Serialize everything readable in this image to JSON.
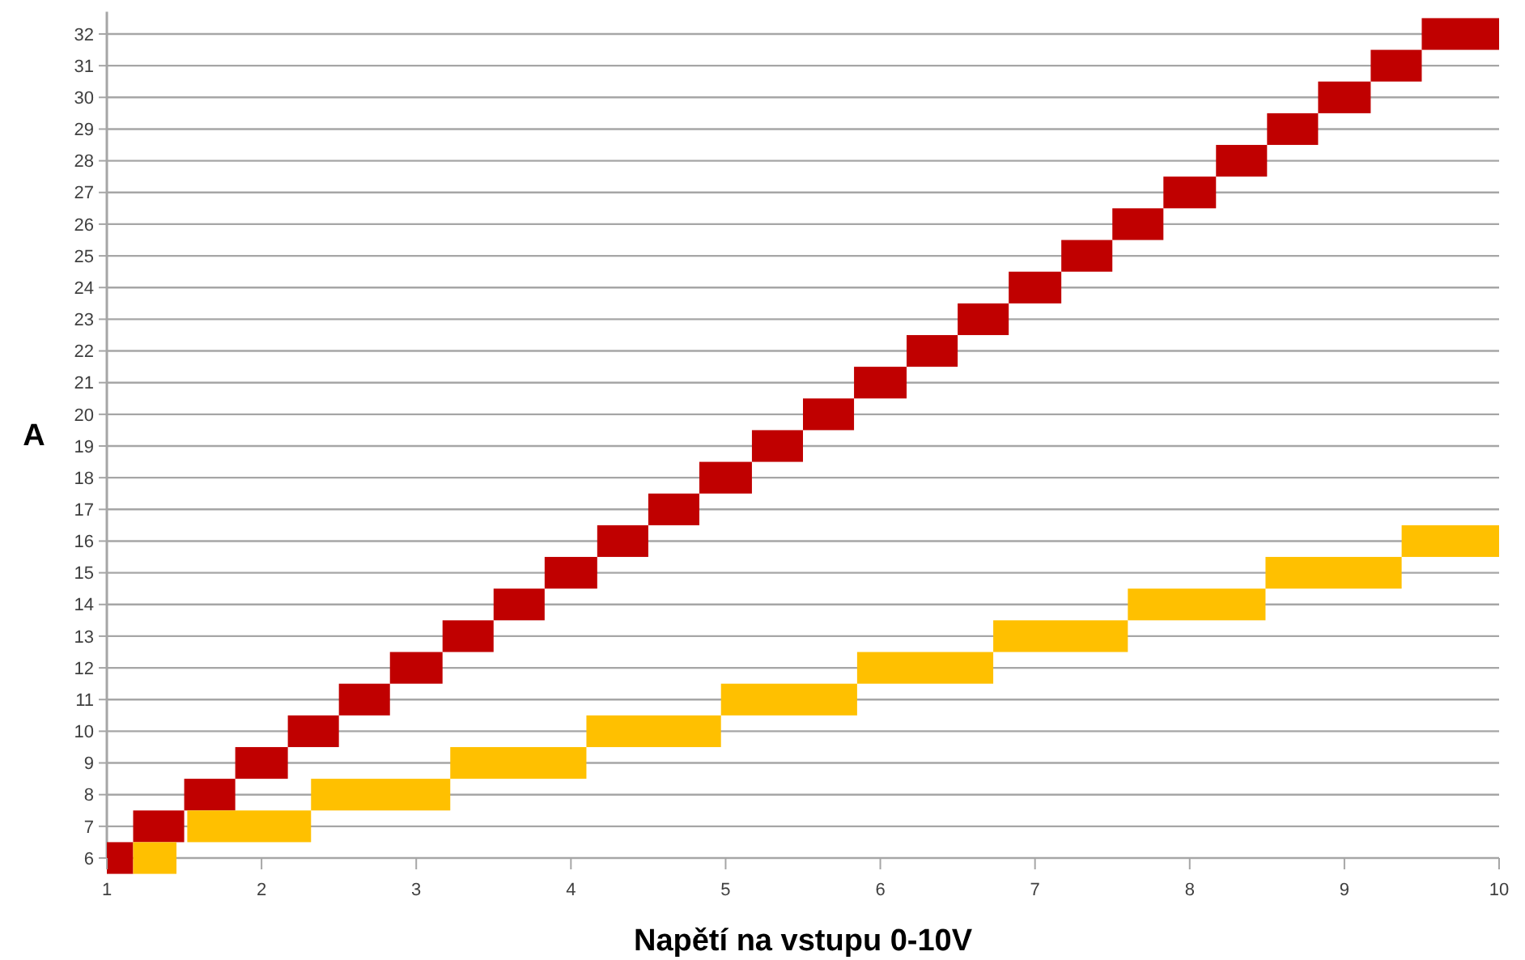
{
  "chart_data": {
    "type": "bar",
    "orientation": "horizontal",
    "xlabel": "Napětí na vstupu 0-10V",
    "ylabel": "A",
    "categories": [
      "32",
      "31",
      "30",
      "29",
      "28",
      "27",
      "26",
      "25",
      "24",
      "23",
      "22",
      "21",
      "20",
      "19",
      "18",
      "17",
      "16",
      "15",
      "14",
      "13",
      "12",
      "11",
      "10",
      "9",
      "8",
      "7",
      "6"
    ],
    "xlim": [
      1,
      10
    ],
    "xticks": [
      1,
      2,
      3,
      4,
      5,
      6,
      7,
      8,
      9,
      10
    ],
    "grid": "y",
    "series": [
      {
        "color": "#c00000",
        "base": [
          9.5,
          9.17,
          8.83,
          8.5,
          8.17,
          7.83,
          7.5,
          7.17,
          6.83,
          6.5,
          6.17,
          5.83,
          5.5,
          5.17,
          4.83,
          4.5,
          4.17,
          3.83,
          3.5,
          3.17,
          2.83,
          2.5,
          2.17,
          1.83,
          1.5,
          1.17,
          1
        ],
        "values": [
          0.5,
          0.33,
          0.34,
          0.33,
          0.33,
          0.34,
          0.33,
          0.33,
          0.34,
          0.33,
          0.33,
          0.34,
          0.33,
          0.33,
          0.34,
          0.33,
          0.33,
          0.34,
          0.33,
          0.33,
          0.34,
          0.33,
          0.33,
          0.34,
          0.33,
          0.33,
          0.17
        ]
      },
      {
        "color": "#ffc000",
        "base": [
          null,
          null,
          null,
          null,
          null,
          null,
          null,
          null,
          null,
          null,
          null,
          null,
          null,
          null,
          null,
          null,
          9.37,
          8.49,
          7.6,
          6.73,
          5.85,
          4.97,
          4.1,
          3.22,
          2.32,
          1.52,
          1.17
        ],
        "values": [
          null,
          null,
          null,
          null,
          null,
          null,
          null,
          null,
          null,
          null,
          null,
          null,
          null,
          null,
          null,
          null,
          0.63,
          0.88,
          0.89,
          0.87,
          0.88,
          0.88,
          0.87,
          0.88,
          0.9,
          0.8,
          0.28
        ]
      }
    ]
  }
}
